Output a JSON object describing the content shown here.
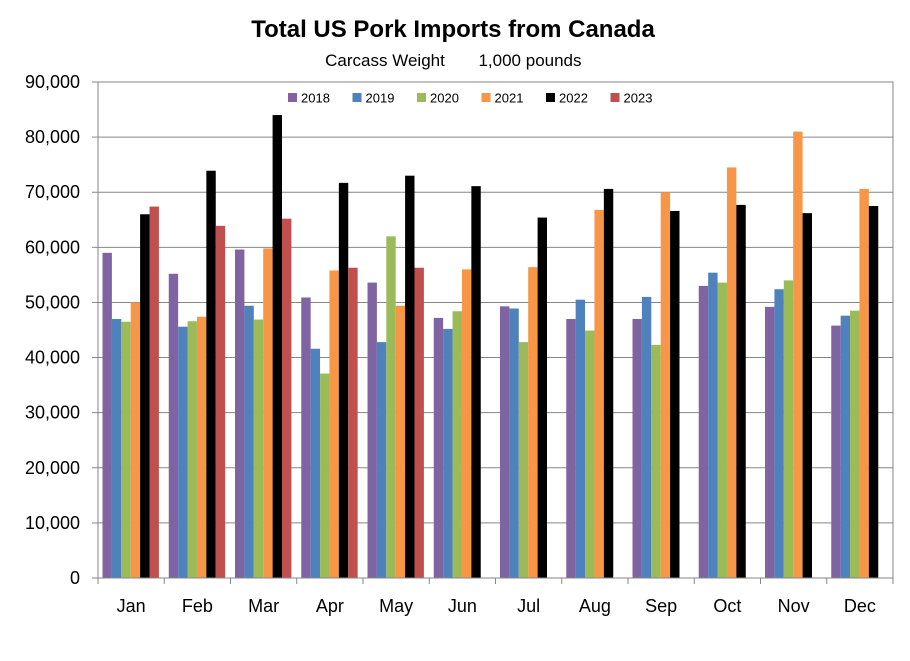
{
  "chart_data": {
    "type": "bar",
    "title": "Total US Pork Imports from Canada",
    "subtitle": "Carcass Weight",
    "units": "1,000 pounds",
    "categories": [
      "Jan",
      "Feb",
      "Mar",
      "Apr",
      "May",
      "Jun",
      "Jul",
      "Aug",
      "Sep",
      "Oct",
      "Nov",
      "Dec"
    ],
    "ylim": [
      0,
      90000
    ],
    "yticks": [
      "0",
      "10,000",
      "20,000",
      "30,000",
      "40,000",
      "50,000",
      "60,000",
      "70,000",
      "80,000",
      "90,000"
    ],
    "grid": true,
    "legend_position": "top-center",
    "series": [
      {
        "name": "2018",
        "color": "#8064a2",
        "values": [
          59000,
          55200,
          59600,
          50900,
          53600,
          47200,
          49300,
          47000,
          47000,
          53000,
          49200,
          45800
        ]
      },
      {
        "name": "2019",
        "color": "#4f81bd",
        "values": [
          47000,
          45600,
          49400,
          41600,
          42800,
          45200,
          48900,
          50500,
          51000,
          55400,
          52400,
          47600
        ]
      },
      {
        "name": "2020",
        "color": "#9bbb59",
        "values": [
          46500,
          46600,
          46900,
          37100,
          62000,
          48400,
          42800,
          44900,
          42300,
          53600,
          54000,
          48500
        ]
      },
      {
        "name": "2021",
        "color": "#f79646",
        "values": [
          50000,
          47400,
          59800,
          55800,
          49400,
          56000,
          56400,
          66800,
          70000,
          74500,
          81000,
          70600
        ]
      },
      {
        "name": "2022",
        "color": "#000000",
        "values": [
          66000,
          73900,
          84000,
          71700,
          73000,
          71100,
          65400,
          70600,
          66600,
          67700,
          66200,
          67500
        ]
      },
      {
        "name": "2023",
        "color": "#c0504d",
        "values": [
          67400,
          63900,
          65200,
          56300,
          56300,
          null,
          null,
          null,
          null,
          null,
          null,
          null
        ]
      }
    ]
  }
}
